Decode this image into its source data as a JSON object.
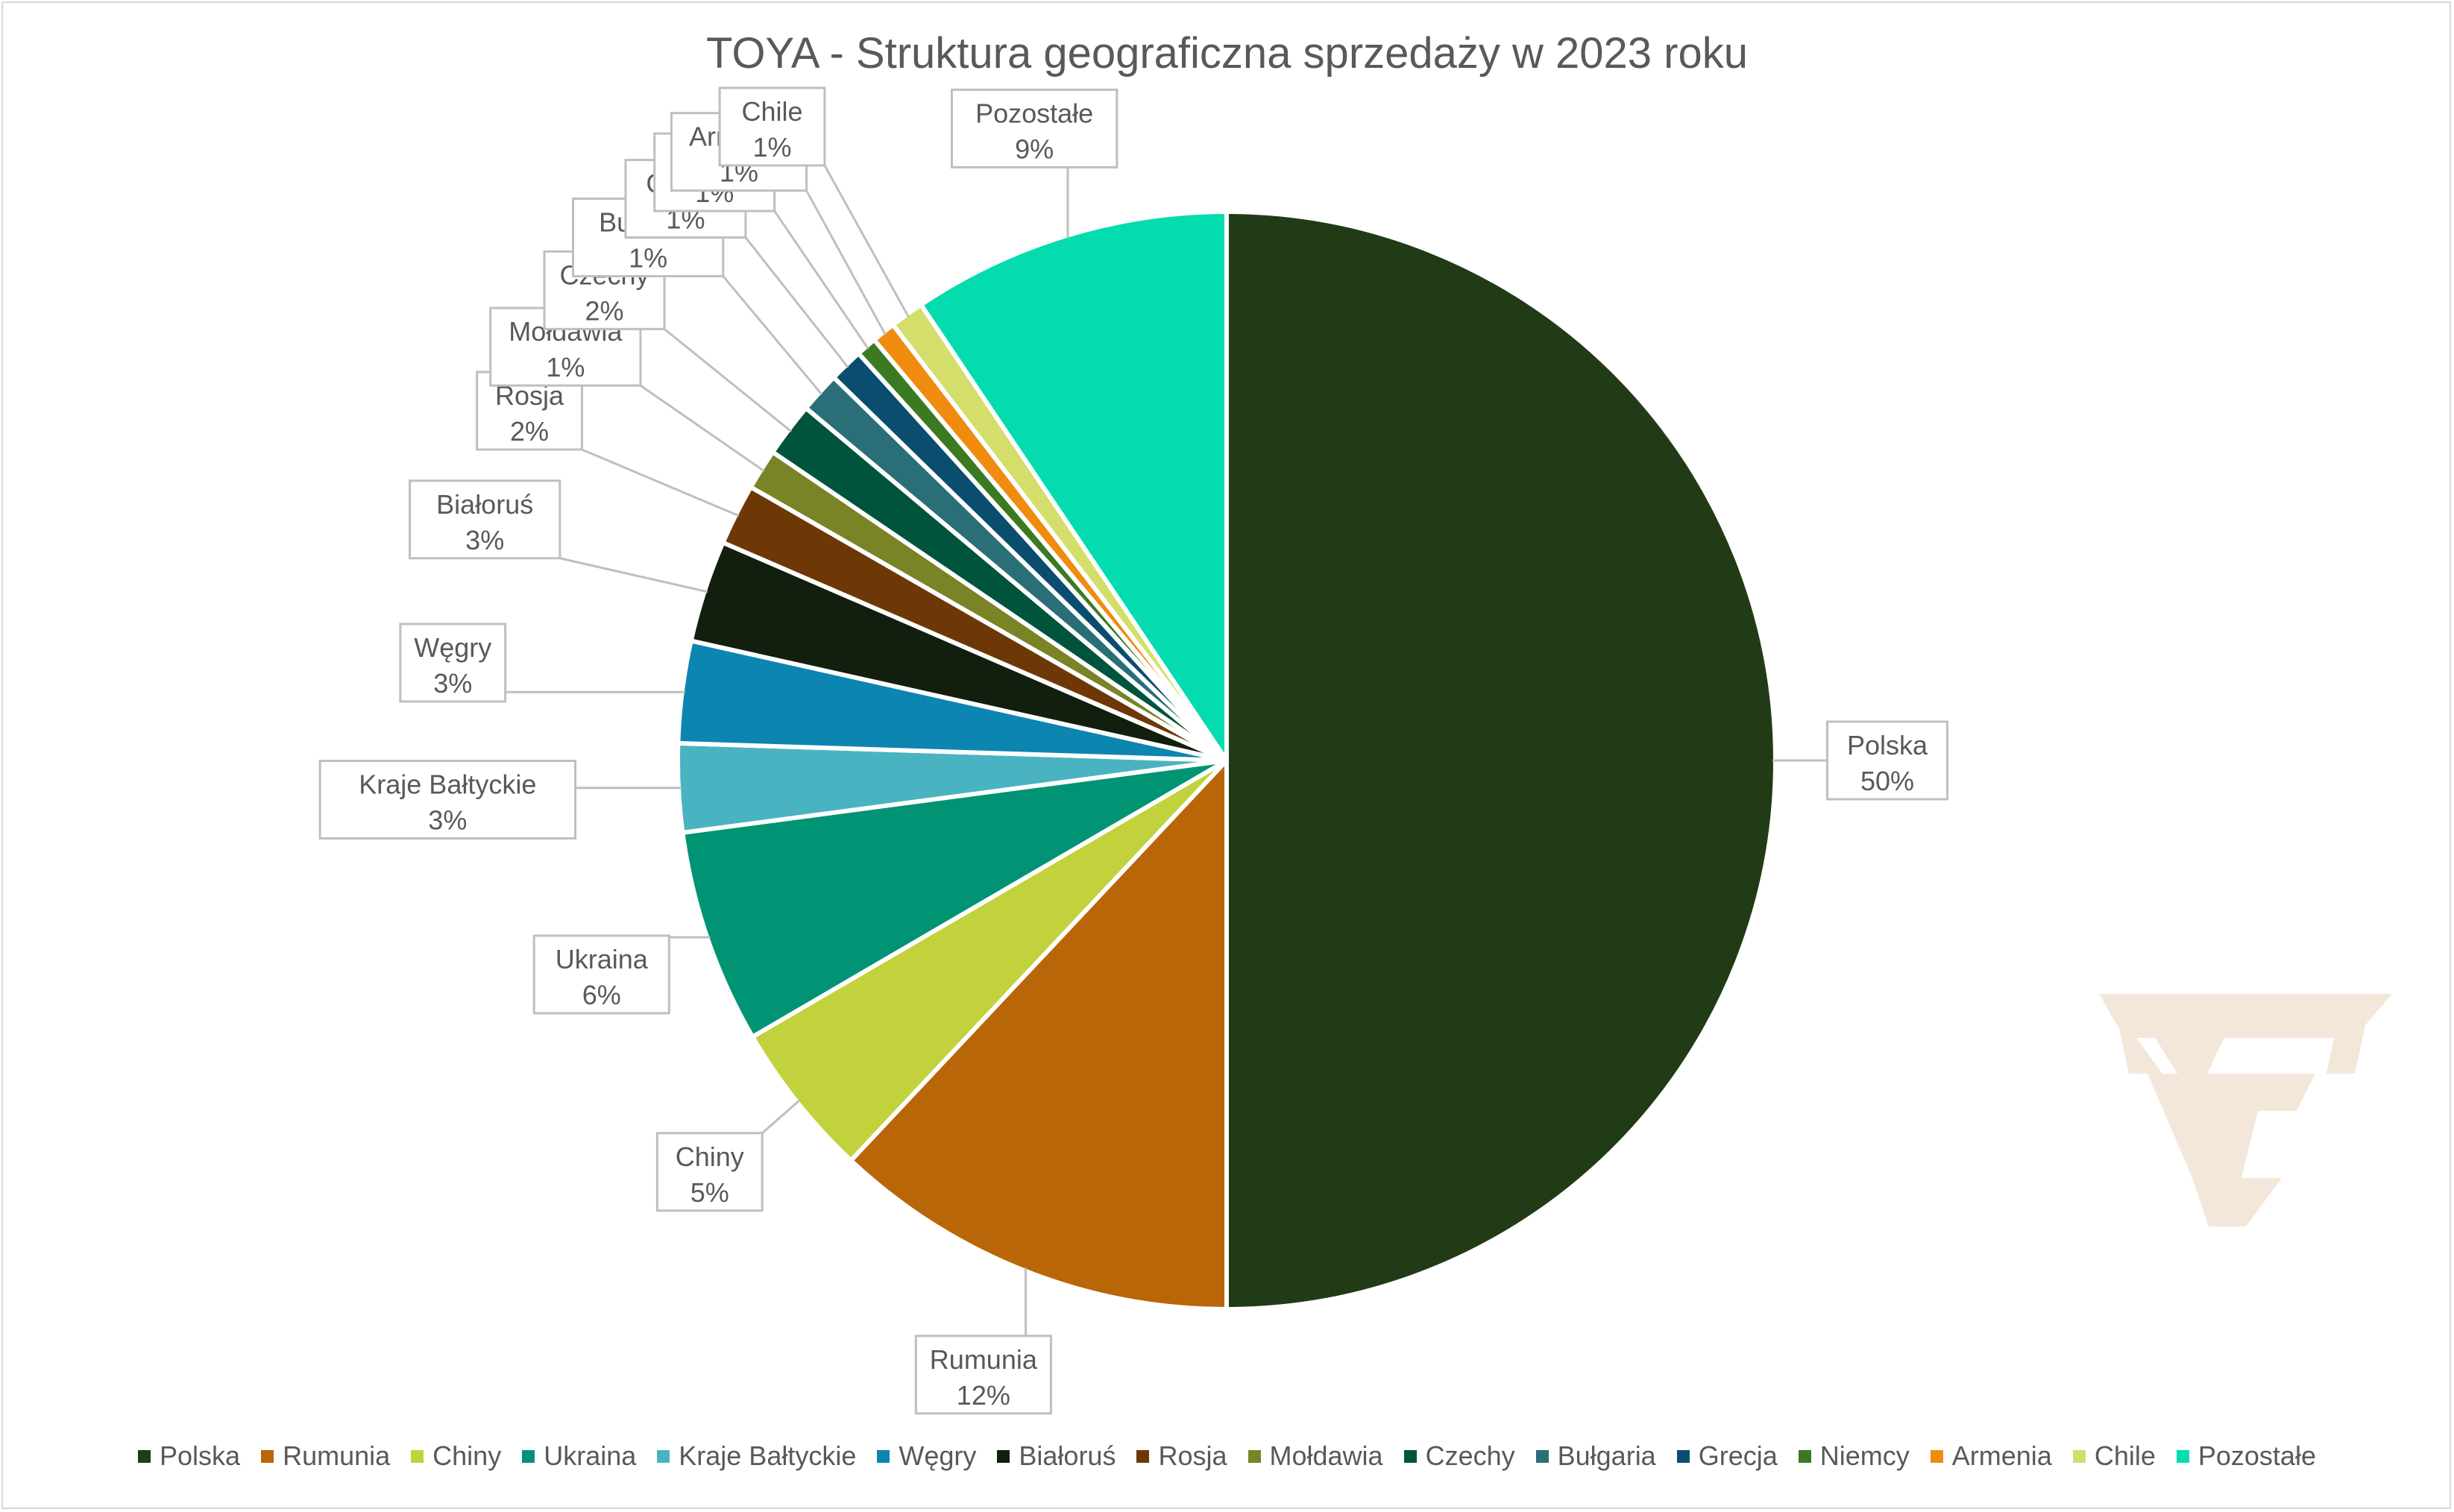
{
  "chart_data": {
    "type": "pie",
    "title": "TOYA - Struktura geograficzna sprzedaży w 2023 roku",
    "slices": [
      {
        "label": "Polska",
        "value": 50,
        "display": "50%",
        "color": "#213b17"
      },
      {
        "label": "Rumunia",
        "value": 12,
        "display": "12%",
        "color": "#b96608"
      },
      {
        "label": "Chiny",
        "value": 4.6,
        "display": "5%",
        "color": "#c1d23c"
      },
      {
        "label": "Ukraina",
        "value": 6.3,
        "display": "6%",
        "color": "#019474"
      },
      {
        "label": "Kraje Bałtyckie",
        "value": 2.6,
        "display": "3%",
        "color": "#4ab3c2"
      },
      {
        "label": "Węgry",
        "value": 3.0,
        "display": "3%",
        "color": "#0d85b1"
      },
      {
        "label": "Białoruś",
        "value": 3.0,
        "display": "3%",
        "color": "#121e0e"
      },
      {
        "label": "Rosja",
        "value": 1.8,
        "display": "2%",
        "color": "#6e3806"
      },
      {
        "label": "Mołdawia",
        "value": 1.2,
        "display": "1%",
        "color": "#7a8326"
      },
      {
        "label": "Czechy",
        "value": 1.6,
        "display": "2%",
        "color": "#00543c"
      },
      {
        "label": "Bułgaria",
        "value": 1.2,
        "display": "1%",
        "color": "#2a6f78"
      },
      {
        "label": "Grecja",
        "value": 1.0,
        "display": "1%",
        "color": "#0b4d6e"
      },
      {
        "label": "Niemcy",
        "value": 0.6,
        "display": "1%",
        "color": "#3b7a22"
      },
      {
        "label": "Armenia",
        "value": 0.7,
        "display": "1%",
        "color": "#ef8c10"
      },
      {
        "label": "Chile",
        "value": 1.0,
        "display": "1%",
        "color": "#d4df6b"
      },
      {
        "label": "Pozostałe",
        "value": 9.4,
        "display": "9%",
        "color": "#04dcb0"
      }
    ],
    "legend_position": "bottom"
  },
  "watermark": {
    "name": "toya-logo",
    "color": "#f3e7da"
  }
}
